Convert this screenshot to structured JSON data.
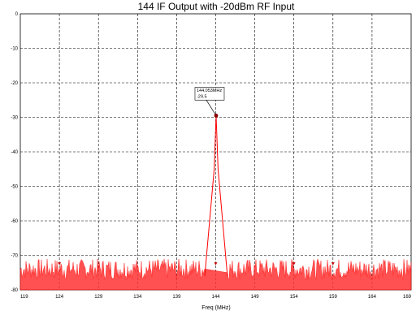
{
  "chart_data": {
    "type": "line",
    "title": "144 IF Output with -20dBm RF Input",
    "xlabel": "Freq (MHz)",
    "ylabel": "",
    "xlim": [
      119,
      169
    ],
    "ylim": [
      -80,
      0
    ],
    "x_ticks": [
      "119",
      "124",
      "129",
      "134",
      "139",
      "144",
      "149",
      "154",
      "159",
      "164",
      "169"
    ],
    "y_ticks": [
      "0",
      "-10",
      "-20",
      "-30",
      "-40",
      "-50",
      "-60",
      "-70",
      "-80"
    ],
    "grid": true,
    "colors": {
      "trace": "#ff0000",
      "trace_fill": "#ff3333",
      "marker": "#8b0000",
      "grid": "#000000"
    },
    "noise_floor": {
      "low": -77,
      "high": -71
    },
    "series": [
      {
        "values_x": [
          119,
          142.6,
          143.8,
          144.05,
          144.3,
          145.5,
          169
        ],
        "values_y": [
          -77,
          -76,
          -45,
          -29.5,
          -45,
          -76,
          -77
        ]
      }
    ],
    "marker": {
      "x": 144.05,
      "y": -29.5,
      "label_freq": "144.053MHz",
      "label_value": "-29.5"
    },
    "small_markers_x": [
      124,
      144,
      154,
      159
    ]
  }
}
